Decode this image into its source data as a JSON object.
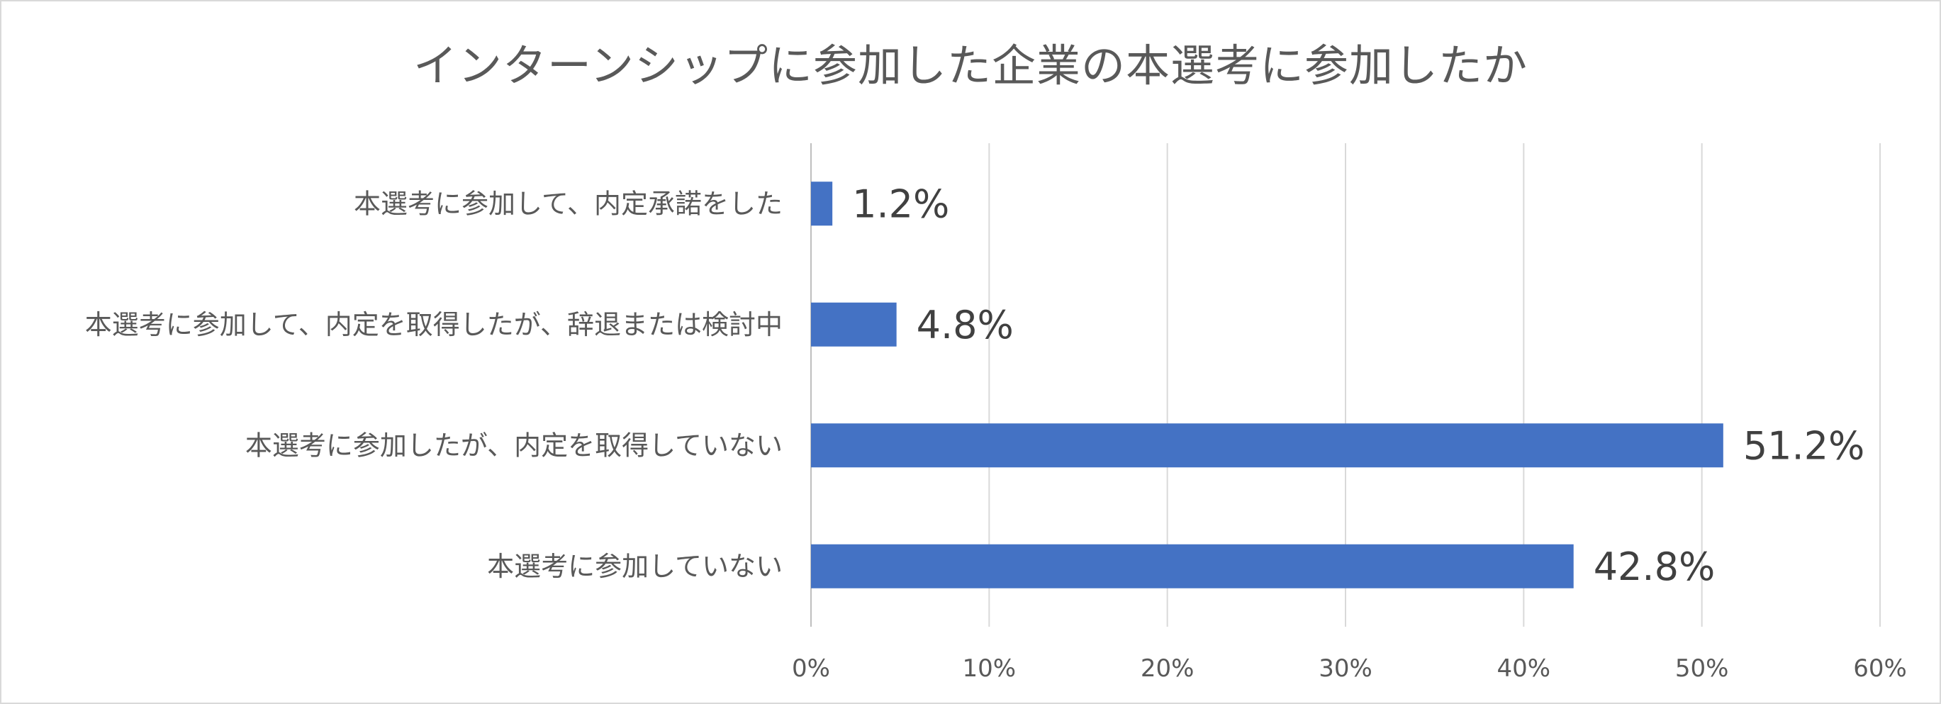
{
  "chart_data": {
    "type": "bar",
    "orientation": "horizontal",
    "title": "インターンシップに参加した企業の本選考に参加したか",
    "categories": [
      "本選考に参加して、内定承諾をした",
      "本選考に参加して、内定を取得したが、辞退または検討中",
      "本選考に参加したが、内定を取得していない",
      "本選考に参加していない"
    ],
    "values": [
      1.2,
      4.8,
      51.2,
      42.8
    ],
    "data_labels": [
      "1.2%",
      "4.8%",
      "51.2%",
      "42.8%"
    ],
    "x_ticks": [
      "0%",
      "10%",
      "20%",
      "30%",
      "40%",
      "50%",
      "60%"
    ],
    "xlim": [
      0,
      60
    ],
    "grid": true,
    "legend": "none",
    "bar_color": "#4472c4"
  }
}
